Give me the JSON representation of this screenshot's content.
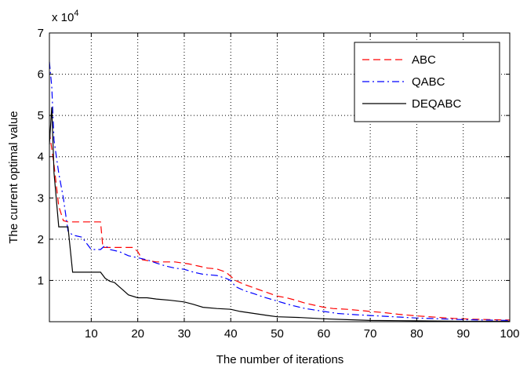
{
  "chart_data": {
    "type": "line",
    "title": "",
    "xlabel": "The number of iterations",
    "ylabel": "The current optimal value",
    "y_scale_label": "x 10",
    "y_scale_exponent": "4",
    "xlim": [
      1,
      100
    ],
    "ylim": [
      0,
      7
    ],
    "xticks": [
      10,
      20,
      30,
      40,
      50,
      60,
      70,
      80,
      90,
      100
    ],
    "yticks": [
      1,
      2,
      3,
      4,
      5,
      6,
      7
    ],
    "grid": true,
    "legend_position": "top-right",
    "series": [
      {
        "name": "ABC",
        "color": "#ff0000",
        "style": "dashed",
        "points": [
          [
            1,
            4.6
          ],
          [
            2,
            3.8
          ],
          [
            3,
            2.8
          ],
          [
            4,
            2.45
          ],
          [
            5,
            2.42
          ],
          [
            6,
            2.42
          ],
          [
            8,
            2.42
          ],
          [
            10,
            2.42
          ],
          [
            12,
            2.42
          ],
          [
            12.5,
            1.8
          ],
          [
            15,
            1.8
          ],
          [
            17,
            1.8
          ],
          [
            19,
            1.8
          ],
          [
            20,
            1.7
          ],
          [
            21,
            1.5
          ],
          [
            24,
            1.45
          ],
          [
            28,
            1.45
          ],
          [
            31,
            1.4
          ],
          [
            33,
            1.35
          ],
          [
            35,
            1.3
          ],
          [
            37,
            1.28
          ],
          [
            39,
            1.2
          ],
          [
            40,
            1.1
          ],
          [
            41,
            1.0
          ],
          [
            43,
            0.9
          ],
          [
            46,
            0.78
          ],
          [
            48,
            0.7
          ],
          [
            50,
            0.62
          ],
          [
            52,
            0.58
          ],
          [
            54,
            0.52
          ],
          [
            56,
            0.45
          ],
          [
            58,
            0.4
          ],
          [
            60,
            0.35
          ],
          [
            62,
            0.32
          ],
          [
            65,
            0.3
          ],
          [
            68,
            0.27
          ],
          [
            70,
            0.25
          ],
          [
            73,
            0.22
          ],
          [
            76,
            0.18
          ],
          [
            80,
            0.14
          ],
          [
            84,
            0.11
          ],
          [
            88,
            0.08
          ],
          [
            92,
            0.06
          ],
          [
            96,
            0.05
          ],
          [
            100,
            0.04
          ]
        ]
      },
      {
        "name": "QABC",
        "color": "#0000ff",
        "style": "dashdot",
        "points": [
          [
            1,
            6.3
          ],
          [
            1.5,
            5.7
          ],
          [
            2,
            4.4
          ],
          [
            3,
            3.6
          ],
          [
            4,
            3.0
          ],
          [
            5,
            2.2
          ],
          [
            6,
            2.1
          ],
          [
            8,
            2.05
          ],
          [
            9,
            1.9
          ],
          [
            10,
            1.75
          ],
          [
            12,
            1.75
          ],
          [
            13,
            1.85
          ],
          [
            14,
            1.75
          ],
          [
            16,
            1.7
          ],
          [
            18,
            1.6
          ],
          [
            20,
            1.55
          ],
          [
            22,
            1.5
          ],
          [
            24,
            1.42
          ],
          [
            26,
            1.35
          ],
          [
            28,
            1.3
          ],
          [
            30,
            1.27
          ],
          [
            32,
            1.2
          ],
          [
            34,
            1.15
          ],
          [
            37,
            1.12
          ],
          [
            39,
            1.05
          ],
          [
            40,
            1.0
          ],
          [
            41,
            0.85
          ],
          [
            43,
            0.75
          ],
          [
            45,
            0.68
          ],
          [
            47,
            0.6
          ],
          [
            50,
            0.5
          ],
          [
            53,
            0.4
          ],
          [
            56,
            0.32
          ],
          [
            60,
            0.25
          ],
          [
            63,
            0.2
          ],
          [
            67,
            0.17
          ],
          [
            70,
            0.15
          ],
          [
            75,
            0.12
          ],
          [
            80,
            0.09
          ],
          [
            85,
            0.07
          ],
          [
            90,
            0.05
          ],
          [
            95,
            0.04
          ],
          [
            100,
            0.03
          ]
        ]
      },
      {
        "name": "DEQABC",
        "color": "#000000",
        "style": "solid",
        "points": [
          [
            1,
            4.3
          ],
          [
            1.5,
            5.2
          ],
          [
            2,
            3.6
          ],
          [
            3,
            2.3
          ],
          [
            5,
            2.3
          ],
          [
            6,
            1.2
          ],
          [
            8,
            1.2
          ],
          [
            12,
            1.2
          ],
          [
            13,
            1.05
          ],
          [
            14,
            0.98
          ],
          [
            15,
            0.95
          ],
          [
            16,
            0.85
          ],
          [
            17,
            0.75
          ],
          [
            18,
            0.65
          ],
          [
            20,
            0.58
          ],
          [
            22,
            0.58
          ],
          [
            24,
            0.55
          ],
          [
            27,
            0.52
          ],
          [
            30,
            0.48
          ],
          [
            32,
            0.42
          ],
          [
            34,
            0.35
          ],
          [
            37,
            0.32
          ],
          [
            40,
            0.3
          ],
          [
            42,
            0.25
          ],
          [
            45,
            0.2
          ],
          [
            48,
            0.15
          ],
          [
            50,
            0.12
          ],
          [
            55,
            0.1
          ],
          [
            60,
            0.07
          ],
          [
            65,
            0.05
          ],
          [
            70,
            0.03
          ],
          [
            80,
            0.02
          ],
          [
            90,
            0.01
          ],
          [
            100,
            0.01
          ]
        ]
      }
    ]
  }
}
